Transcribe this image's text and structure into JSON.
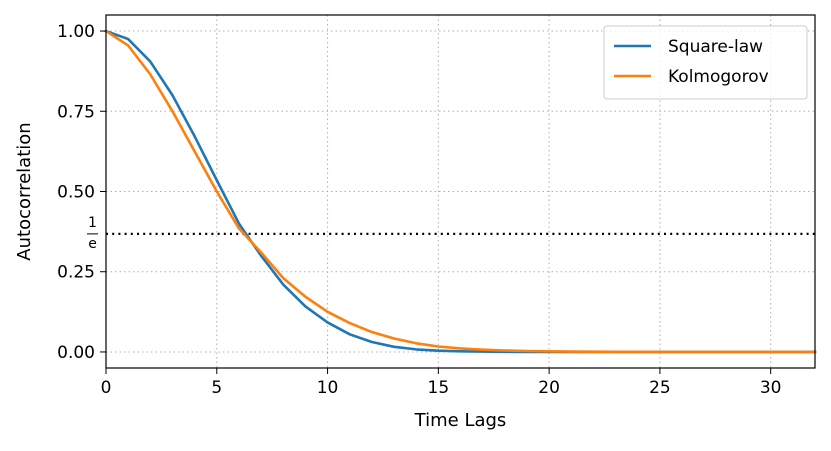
{
  "chart_data": {
    "type": "line",
    "title": "",
    "xlabel": "Time Lags",
    "ylabel": "Autocorrelation",
    "xlim": [
      0,
      32
    ],
    "ylim": [
      -0.05,
      1.05
    ],
    "grid": true,
    "legend_position": "upper right",
    "x_ticks": [
      0,
      5,
      10,
      15,
      20,
      25,
      30
    ],
    "x_tick_labels": [
      "0",
      "5",
      "10",
      "15",
      "20",
      "25",
      "30"
    ],
    "y_ticks": [
      0.0,
      0.25,
      0.5,
      0.75,
      1.0
    ],
    "y_tick_labels": [
      "0.00",
      "0.25",
      "0.50",
      "0.75",
      "1.00"
    ],
    "reference_line": {
      "y": 0.3679,
      "label_numerator": "1",
      "label_denominator": "e",
      "style": "dotted",
      "color": "#000000"
    },
    "series": [
      {
        "name": "Square-law",
        "color": "#1f77b4",
        "x": [
          0,
          1,
          2,
          3,
          4,
          5,
          6,
          7,
          8,
          9,
          10,
          11,
          12,
          13,
          14,
          15,
          16,
          17,
          18,
          19,
          20,
          21,
          22,
          23,
          24,
          25,
          26,
          27,
          28,
          29,
          30,
          31,
          32
        ],
        "values": [
          1.0,
          0.975,
          0.905,
          0.8,
          0.672,
          0.535,
          0.4,
          0.3,
          0.21,
          0.142,
          0.092,
          0.055,
          0.031,
          0.016,
          0.008,
          0.004,
          0.002,
          0.001,
          0.0005,
          0.0002,
          0.0001,
          0,
          0,
          0,
          0,
          0,
          0,
          0,
          0,
          0,
          0,
          0,
          0
        ]
      },
      {
        "name": "Kolmogorov",
        "color": "#ff7f0e",
        "x": [
          0,
          1,
          2,
          3,
          4,
          5,
          6,
          7,
          8,
          9,
          10,
          11,
          12,
          13,
          14,
          15,
          16,
          17,
          18,
          19,
          20,
          21,
          22,
          23,
          24,
          25,
          26,
          27,
          28,
          29,
          30,
          31,
          32
        ],
        "values": [
          1.0,
          0.955,
          0.865,
          0.75,
          0.625,
          0.5,
          0.385,
          0.31,
          0.23,
          0.172,
          0.125,
          0.09,
          0.062,
          0.042,
          0.027,
          0.017,
          0.011,
          0.007,
          0.0045,
          0.003,
          0.002,
          0.0013,
          0.0008,
          0.0005,
          0.0003,
          0.0002,
          0.0001,
          0,
          0,
          0,
          0,
          0,
          0
        ]
      }
    ]
  }
}
